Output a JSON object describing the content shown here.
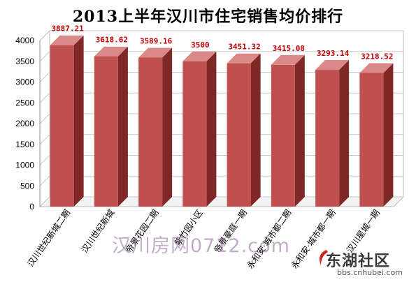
{
  "chart_data": {
    "type": "bar",
    "title": "2013上半年汉川市住宅销售均价排行",
    "categories": [
      "汉川世纪新城二期",
      "汉川世纪新城",
      "帝景花园二期",
      "紫竹园小区",
      "帝景豪庭一期",
      "永和安·城市都二期",
      "永和安·城市都一期",
      "汉川星城一期"
    ],
    "values": [
      3887.21,
      3618.62,
      3589.16,
      3500,
      3451.32,
      3415.08,
      3293.14,
      3218.52
    ],
    "value_labels": [
      "3887.21",
      "3618.62",
      "3589.16",
      "3500",
      "3451.32",
      "3415.08",
      "3293.14",
      "3218.52"
    ],
    "ylim": [
      0,
      4000
    ],
    "yticks": [
      0,
      500,
      1000,
      1500,
      2000,
      2500,
      3000,
      3500,
      4000
    ],
    "ytick_labels": [
      "0",
      "500",
      "1000",
      "1500",
      "2000",
      "2500",
      "3000",
      "3500",
      "4000"
    ],
    "xlabel": "",
    "ylabel": "",
    "grid": true,
    "bar_color": "#c0504d",
    "label_color": "#c00000"
  },
  "watermarks": {
    "site_text": "汉川房网0712.com",
    "logo_text": "东湖社区",
    "logo_url": "bbs.cnhubei.com"
  }
}
